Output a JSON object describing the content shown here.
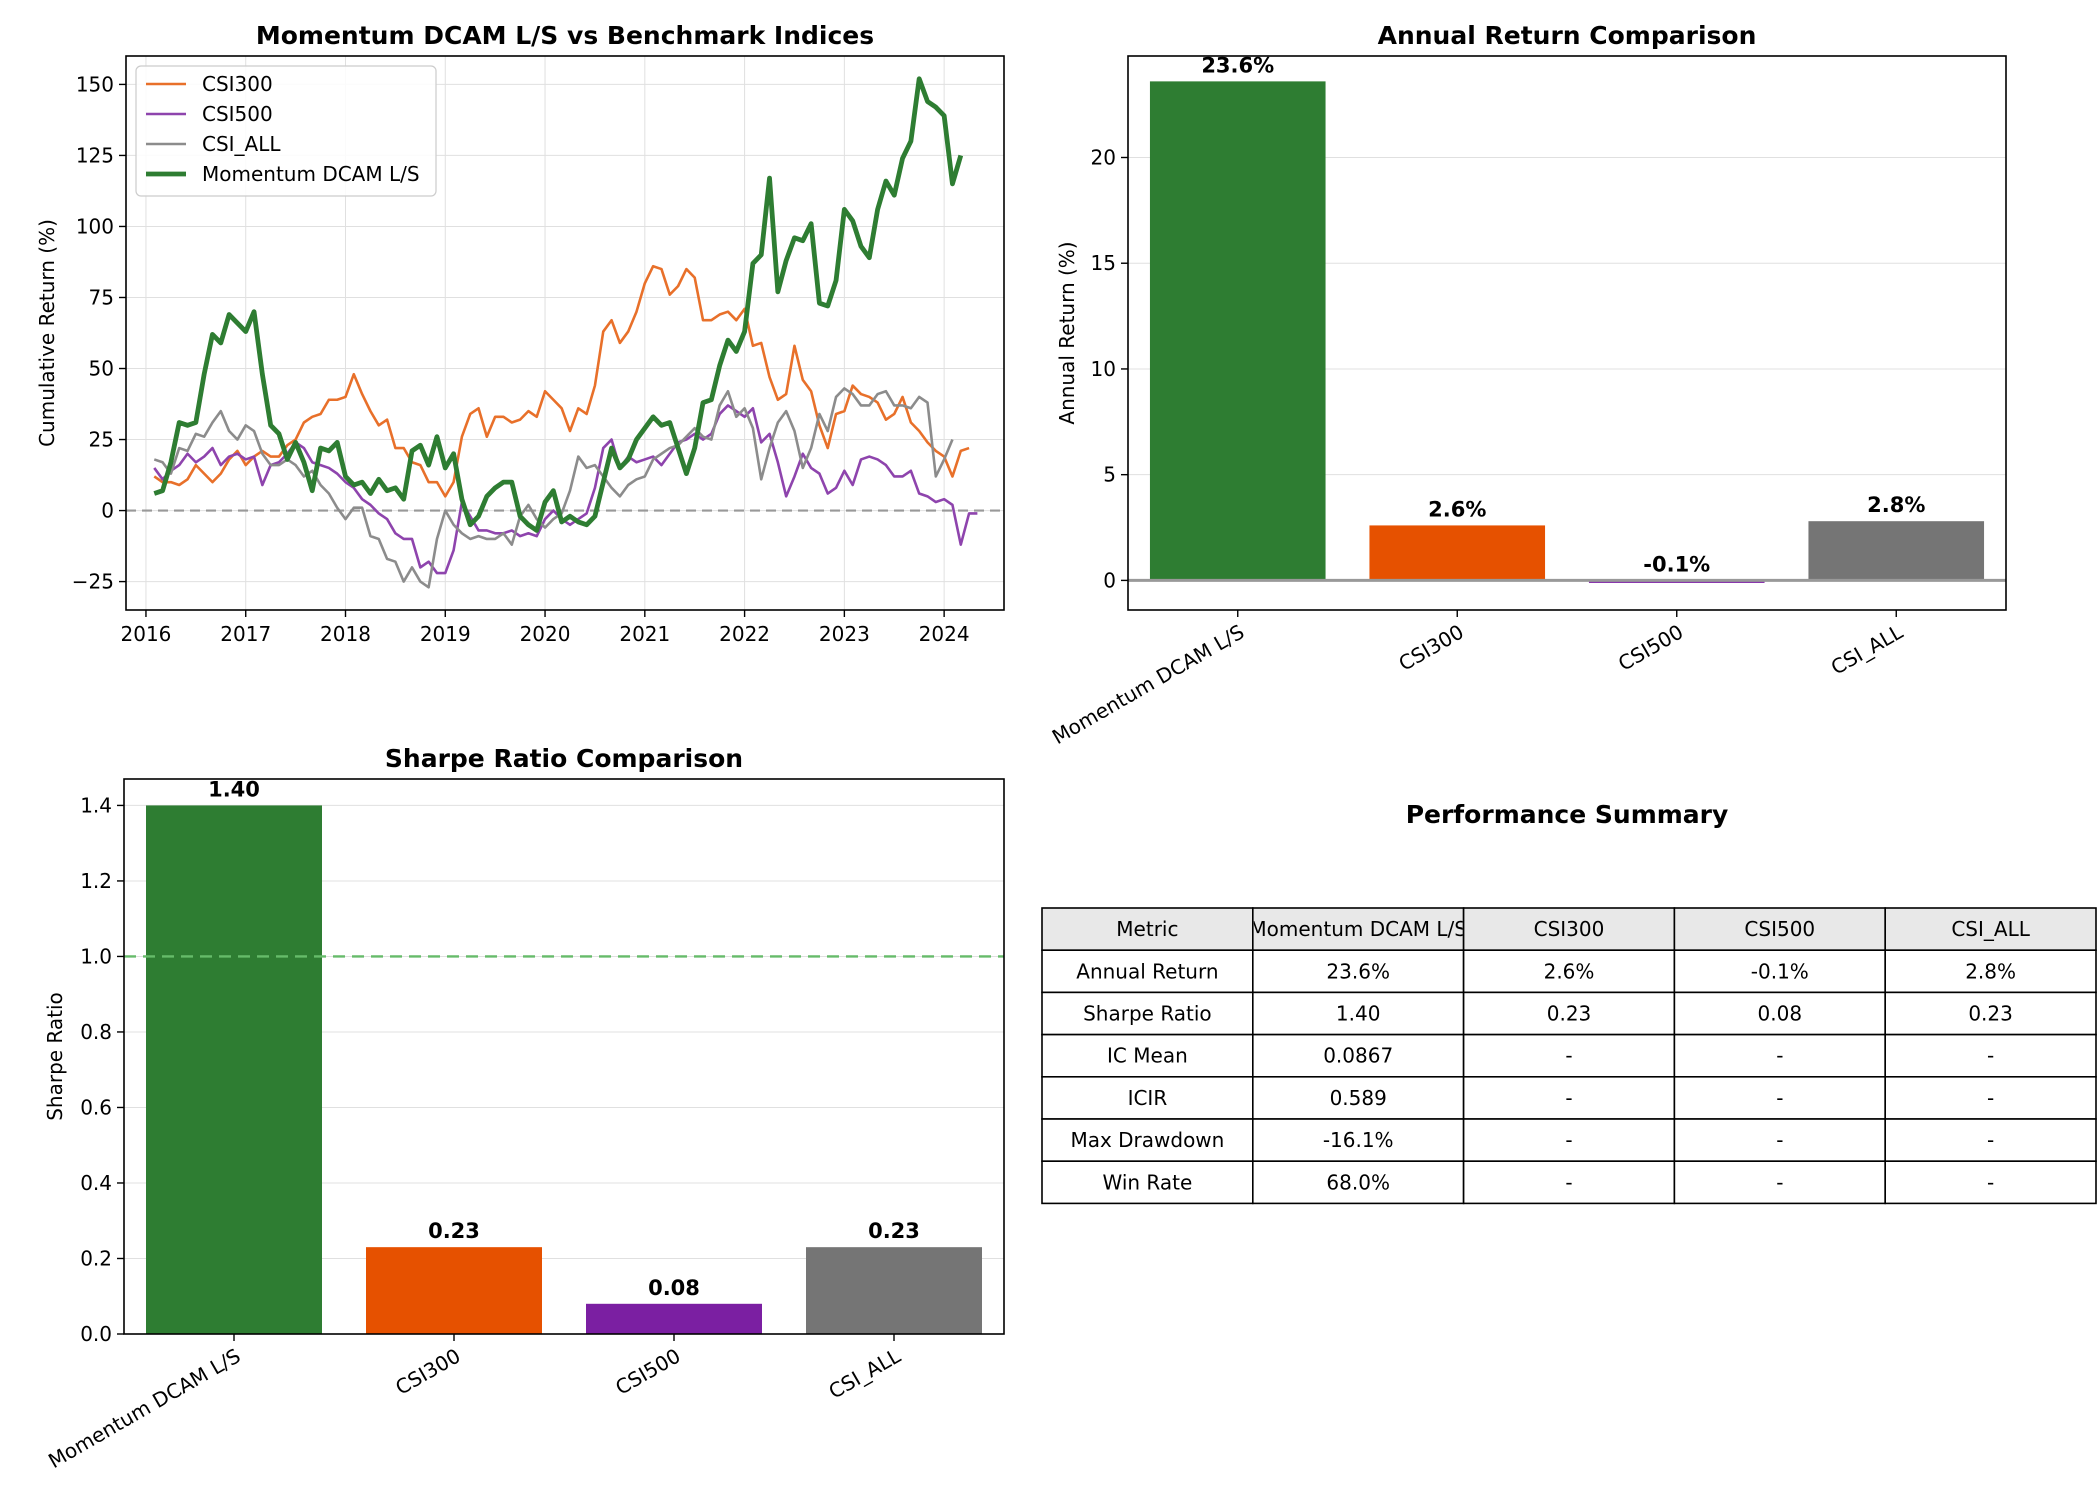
{
  "colors": {
    "momentum": "#2e7d32",
    "csi300": "#e65100",
    "csi500": "#7b1fa2",
    "csi_all": "#757575",
    "csi300_line": "#e8702a",
    "csi500_line": "#8e44ad",
    "csi_all_line": "#8c8c8c",
    "reference": "#66bb6a"
  },
  "chart_data": [
    {
      "type": "line",
      "title": "Momentum DCAM L/S vs Benchmark Indices",
      "xlabel": "",
      "ylabel": "Cumulative Return (%)",
      "xlim": [
        2015.8,
        2024.6
      ],
      "ylim": [
        -35,
        160
      ],
      "xticks": [
        "2016",
        "2017",
        "2018",
        "2019",
        "2020",
        "2021",
        "2022",
        "2023",
        "2024"
      ],
      "yticks": [
        "−25",
        "0",
        "25",
        "50",
        "75",
        "100",
        "125",
        "150"
      ],
      "grid": true,
      "legend": "upper-left",
      "reference_line": 0,
      "x_start": "2016-02",
      "x_step_months": 1,
      "series": [
        {
          "name": "CSI300",
          "values": [
            12,
            10,
            10,
            9,
            11,
            16,
            13,
            10,
            13,
            18,
            21,
            16,
            19,
            21,
            19,
            19,
            23,
            25,
            31,
            33,
            34,
            39,
            39,
            40,
            48,
            41,
            35,
            30,
            32,
            22,
            22,
            17,
            16,
            10,
            10,
            5,
            10,
            26,
            34,
            36,
            26,
            33,
            33,
            31,
            32,
            35,
            33,
            42,
            39,
            36,
            28,
            36,
            34,
            44,
            63,
            67,
            59,
            63,
            70,
            80,
            86,
            85,
            76,
            79,
            85,
            82,
            67,
            67,
            69,
            70,
            67,
            71,
            58,
            59,
            47,
            39,
            41,
            58,
            46,
            42,
            30,
            22,
            34,
            35,
            44,
            41,
            40,
            38,
            32,
            34,
            40,
            31,
            28,
            24,
            21,
            19,
            12,
            21,
            22
          ]
        },
        {
          "name": "CSI500",
          "values": [
            15,
            11,
            14,
            16,
            20,
            17,
            19,
            22,
            16,
            19,
            20,
            18,
            19,
            9,
            16,
            17,
            20,
            24,
            22,
            17,
            16,
            15,
            13,
            10,
            8,
            4,
            2,
            -1,
            -3,
            -8,
            -10,
            -10,
            -20,
            -18,
            -22,
            -22,
            -14,
            3,
            -2,
            -7,
            -7,
            -8,
            -8,
            -7,
            -9,
            -8,
            -9,
            -3,
            0,
            -3,
            -5,
            -3,
            -1,
            8,
            22,
            25,
            15,
            19,
            17,
            18,
            19,
            16,
            20,
            24,
            25,
            27,
            25,
            27,
            34,
            37,
            35,
            33,
            36,
            24,
            27,
            17,
            5,
            12,
            20,
            15,
            13,
            6,
            8,
            14,
            9,
            18,
            19,
            18,
            16,
            12,
            12,
            14,
            6,
            5,
            3,
            4,
            2,
            -12,
            -1,
            -1
          ]
        },
        {
          "name": "CSI_ALL",
          "values": [
            18,
            17,
            13,
            22,
            21,
            27,
            26,
            31,
            35,
            28,
            25,
            30,
            28,
            20,
            16,
            16,
            18,
            16,
            12,
            14,
            9,
            6,
            1,
            -3,
            1,
            1,
            -9,
            -10,
            -17,
            -18,
            -25,
            -20,
            -25,
            -27,
            -10,
            0,
            -5,
            -8,
            -10,
            -9,
            -10,
            -10,
            -8,
            -12,
            -2,
            2,
            -3,
            -6,
            -3,
            -1,
            7,
            19,
            15,
            16,
            12,
            8,
            5,
            9,
            11,
            12,
            18,
            20,
            22,
            23,
            26,
            29,
            26,
            25,
            37,
            42,
            33,
            36,
            29,
            11,
            22,
            31,
            35,
            28,
            15,
            22,
            34,
            28,
            40,
            43,
            41,
            37,
            37,
            41,
            42,
            37,
            37,
            36,
            40,
            38,
            12,
            18,
            25
          ]
        },
        {
          "name": "Momentum DCAM L/S",
          "values": [
            6,
            7,
            17,
            31,
            30,
            31,
            48,
            62,
            59,
            69,
            66,
            63,
            70,
            48,
            30,
            27,
            18,
            24,
            17,
            7,
            22,
            21,
            24,
            12,
            9,
            10,
            6,
            11,
            7,
            8,
            4,
            21,
            23,
            16,
            26,
            15,
            20,
            4,
            -5,
            -2,
            5,
            8,
            10,
            10,
            -2,
            -5,
            -7,
            3,
            7,
            -4,
            -2,
            -4,
            -5,
            -2,
            10,
            22,
            15,
            18,
            25,
            29,
            33,
            30,
            31,
            22,
            13,
            22,
            38,
            39,
            51,
            60,
            56,
            63,
            87,
            90,
            117,
            77,
            88,
            96,
            95,
            101,
            73,
            72,
            81,
            106,
            102,
            93,
            89,
            106,
            116,
            111,
            124,
            130,
            152,
            144,
            142,
            139,
            115,
            125
          ]
        }
      ]
    },
    {
      "type": "bar",
      "title": "Annual Return Comparison",
      "xlabel": "",
      "ylabel": "Annual Return (%)",
      "ylim": [
        -1.4,
        24.8
      ],
      "yticks": [
        "0",
        "5",
        "10",
        "15",
        "20"
      ],
      "categories": [
        "Momentum DCAM L/S",
        "CSI300",
        "CSI500",
        "CSI_ALL"
      ],
      "values": [
        23.6,
        2.6,
        -0.1,
        2.8
      ],
      "value_labels": [
        "23.6%",
        "2.6%",
        "-0.1%",
        "2.8%"
      ],
      "grid": true,
      "reference_line": 0
    },
    {
      "type": "bar",
      "title": "Sharpe Ratio Comparison",
      "xlabel": "",
      "ylabel": "Sharpe Ratio",
      "ylim": [
        0,
        1.47
      ],
      "yticks": [
        "0.0",
        "0.2",
        "0.4",
        "0.6",
        "0.8",
        "1.0",
        "1.2",
        "1.4"
      ],
      "categories": [
        "Momentum DCAM L/S",
        "CSI300",
        "CSI500",
        "CSI_ALL"
      ],
      "values": [
        1.4,
        0.23,
        0.08,
        0.23
      ],
      "value_labels": [
        "1.40",
        "0.23",
        "0.08",
        "0.23"
      ],
      "grid": true,
      "reference_line": 1.0
    },
    {
      "type": "table",
      "title": "Performance Summary",
      "columns": [
        "Metric",
        "Momentum DCAM L/S",
        "CSI300",
        "CSI500",
        "CSI_ALL"
      ],
      "rows": [
        [
          "Annual Return",
          "23.6%",
          "2.6%",
          "-0.1%",
          "2.8%"
        ],
        [
          "Sharpe Ratio",
          "1.40",
          "0.23",
          "0.08",
          "0.23"
        ],
        [
          "IC Mean",
          "0.0867",
          "-",
          "-",
          "-"
        ],
        [
          "ICIR",
          "0.589",
          "-",
          "-",
          "-"
        ],
        [
          "Max Drawdown",
          "-16.1%",
          "-",
          "-",
          "-"
        ],
        [
          "Win Rate",
          "68.0%",
          "-",
          "-",
          "-"
        ]
      ]
    }
  ]
}
